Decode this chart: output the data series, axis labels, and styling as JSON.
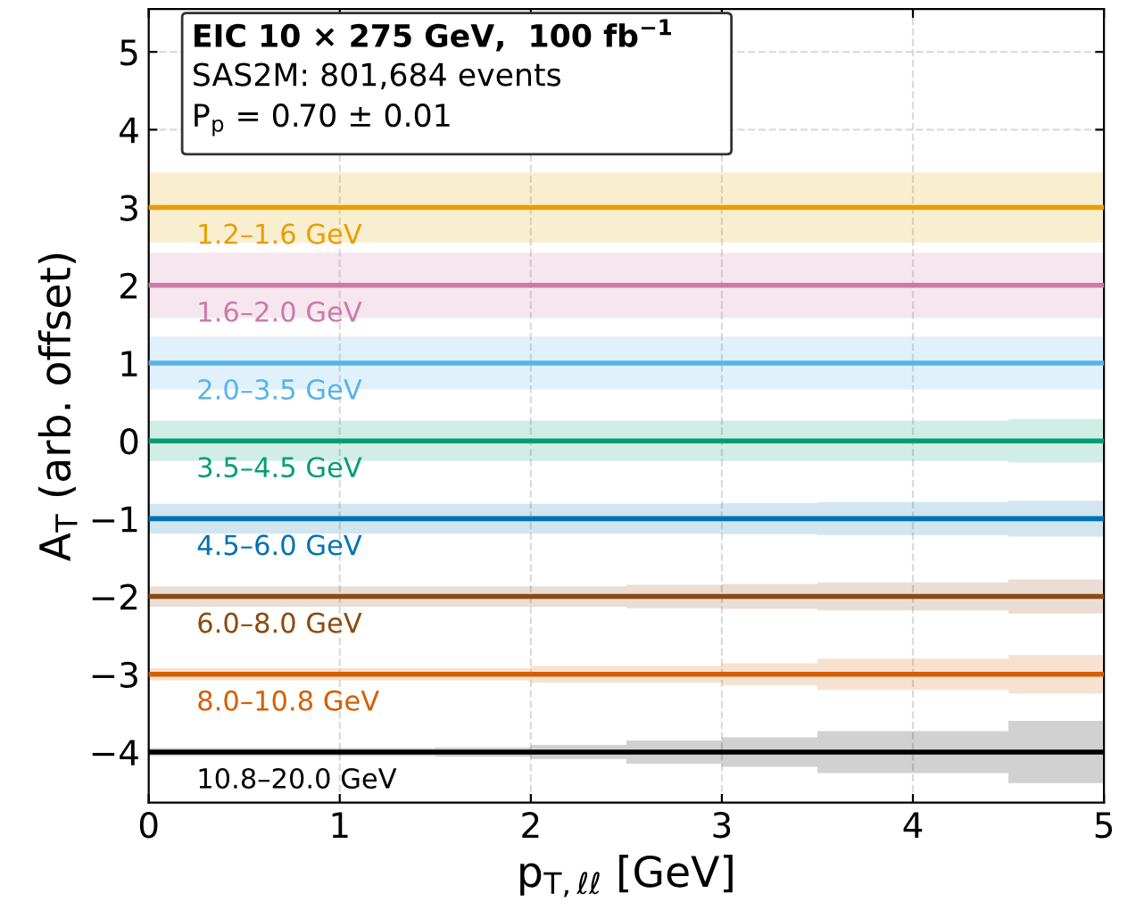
{
  "chart_data": {
    "type": "line",
    "xlabel": "p$_{T,ℓℓ}$ [GeV]",
    "ylabel": "A$_{T}$ (arb. offset)",
    "annotations": [
      "EIC 10 × 275 GeV,  100 fb$^{−1}$",
      "SAS2M: 801,684 events",
      "P$_{p}$ = 0.70 ± 0.01"
    ],
    "xlim": [
      0,
      5
    ],
    "xticks": [
      0,
      1,
      2,
      3,
      4,
      5
    ],
    "ylim": [
      -4.65,
      5.55
    ],
    "yticks": [
      {
        "value": -4,
        "label": "−4"
      },
      {
        "value": -3,
        "label": "−3"
      },
      {
        "value": -2,
        "label": "−2"
      },
      {
        "value": -1,
        "label": "−1"
      },
      0,
      1,
      2,
      3,
      4,
      5
    ],
    "grid": true,
    "legend": false,
    "line_style": "solid",
    "marker": "none",
    "series": [
      {
        "name": "1.2–1.6 GeV",
        "color": "#e69f00",
        "x": [
          0,
          0.5,
          1,
          1.5,
          2,
          2.5,
          3,
          3.5,
          4,
          4.5,
          5
        ],
        "values": [
          3,
          3,
          3,
          3,
          3,
          3,
          3,
          3,
          3,
          3,
          3
        ],
        "lower": [
          2.55,
          2.55,
          2.55,
          2.55,
          2.55,
          2.55,
          2.55,
          2.55,
          2.55,
          2.55,
          2.55
        ],
        "upper": [
          3.45,
          3.45,
          3.45,
          3.45,
          3.45,
          3.45,
          3.45,
          3.45,
          3.45,
          3.45,
          3.45
        ]
      },
      {
        "name": "1.6–2.0 GeV",
        "color": "#cc79a7",
        "x": [
          0,
          0.5,
          1,
          1.5,
          2,
          2.5,
          3,
          3.5,
          4,
          4.5,
          5
        ],
        "values": [
          2,
          2,
          2,
          2,
          2,
          2,
          2,
          2,
          2,
          2,
          2
        ],
        "lower": [
          1.58,
          1.58,
          1.58,
          1.58,
          1.58,
          1.58,
          1.58,
          1.58,
          1.58,
          1.58,
          1.58
        ],
        "upper": [
          2.42,
          2.42,
          2.42,
          2.42,
          2.42,
          2.42,
          2.42,
          2.42,
          2.42,
          2.42,
          2.42
        ]
      },
      {
        "name": "2.0–3.5 GeV",
        "color": "#56b4e9",
        "x": [
          0,
          0.5,
          1,
          1.5,
          2,
          2.5,
          3,
          3.5,
          4,
          4.5,
          5
        ],
        "values": [
          1,
          1,
          1,
          1,
          1,
          1,
          1,
          1,
          1,
          1,
          1
        ],
        "lower": [
          0.66,
          0.66,
          0.66,
          0.66,
          0.66,
          0.66,
          0.66,
          0.66,
          0.66,
          0.66,
          0.66
        ],
        "upper": [
          1.34,
          1.34,
          1.34,
          1.34,
          1.34,
          1.34,
          1.34,
          1.34,
          1.34,
          1.34,
          1.34
        ]
      },
      {
        "name": "3.5–4.5 GeV",
        "color": "#009e73",
        "x": [
          0,
          0.5,
          1,
          1.5,
          2,
          2.5,
          3,
          3.5,
          4,
          4.5,
          5
        ],
        "values": [
          0,
          0,
          0,
          0,
          0,
          0,
          0,
          0,
          0,
          0,
          0
        ],
        "lower": [
          -0.26,
          -0.26,
          -0.26,
          -0.26,
          -0.26,
          -0.26,
          -0.26,
          -0.26,
          -0.26,
          -0.28,
          -0.28
        ],
        "upper": [
          0.26,
          0.26,
          0.26,
          0.26,
          0.26,
          0.26,
          0.26,
          0.26,
          0.26,
          0.28,
          0.28
        ]
      },
      {
        "name": "4.5–6.0 GeV",
        "color": "#0072b2",
        "x": [
          0,
          0.5,
          1,
          1.5,
          2,
          2.5,
          3,
          3.5,
          4,
          4.5,
          5
        ],
        "values": [
          -1,
          -1,
          -1,
          -1,
          -1,
          -1,
          -1,
          -1,
          -1,
          -1,
          -1
        ],
        "lower": [
          -1.19,
          -1.19,
          -1.19,
          -1.19,
          -1.19,
          -1.19,
          -1.2,
          -1.21,
          -1.21,
          -1.23,
          -1.23
        ],
        "upper": [
          -0.81,
          -0.81,
          -0.81,
          -0.81,
          -0.81,
          -0.81,
          -0.8,
          -0.79,
          -0.79,
          -0.77,
          -0.77
        ]
      },
      {
        "name": "6.0–8.0 GeV",
        "color": "#8b4a0e",
        "x": [
          0,
          0.5,
          1,
          1.5,
          2,
          2.5,
          3,
          3.5,
          4,
          4.5,
          5
        ],
        "values": [
          -2,
          -2,
          -2,
          -2,
          -2,
          -2,
          -2,
          -2,
          -2,
          -2,
          -2
        ],
        "lower": [
          -2.13,
          -2.13,
          -2.13,
          -2.13,
          -2.13,
          -2.15,
          -2.16,
          -2.18,
          -2.18,
          -2.22,
          -2.22
        ],
        "upper": [
          -1.87,
          -1.87,
          -1.87,
          -1.87,
          -1.87,
          -1.85,
          -1.84,
          -1.82,
          -1.82,
          -1.78,
          -1.78
        ]
      },
      {
        "name": "8.0–10.8 GeV",
        "color": "#d55e00",
        "x": [
          0,
          0.5,
          1,
          1.5,
          2,
          2.5,
          3,
          3.5,
          4,
          4.5,
          5
        ],
        "values": [
          -3,
          -3,
          -3,
          -3,
          -3,
          -3,
          -3,
          -3,
          -3,
          -3,
          -3
        ],
        "lower": [
          -3.08,
          -3.08,
          -3.08,
          -3.08,
          -3.11,
          -3.11,
          -3.14,
          -3.2,
          -3.2,
          -3.25,
          -3.25
        ],
        "upper": [
          -2.92,
          -2.92,
          -2.92,
          -2.92,
          -2.89,
          -2.89,
          -2.86,
          -2.8,
          -2.8,
          -2.75,
          -2.75
        ]
      },
      {
        "name": "10.8–20.0 GeV",
        "color": "#000000",
        "x": [
          0,
          0.5,
          1,
          1.5,
          2,
          2.5,
          3,
          3.5,
          4,
          4.5,
          5
        ],
        "values": [
          -4,
          -4,
          -4,
          -4,
          -4,
          -4,
          -4,
          -4,
          -4,
          -4,
          -4
        ],
        "lower": [
          -4.05,
          -4.05,
          -4.05,
          -4.06,
          -4.09,
          -4.15,
          -4.19,
          -4.27,
          -4.27,
          -4.4,
          -4.4
        ],
        "upper": [
          -3.95,
          -3.95,
          -3.95,
          -3.94,
          -3.91,
          -3.85,
          -3.81,
          -3.73,
          -3.73,
          -3.6,
          -3.6
        ]
      }
    ]
  }
}
